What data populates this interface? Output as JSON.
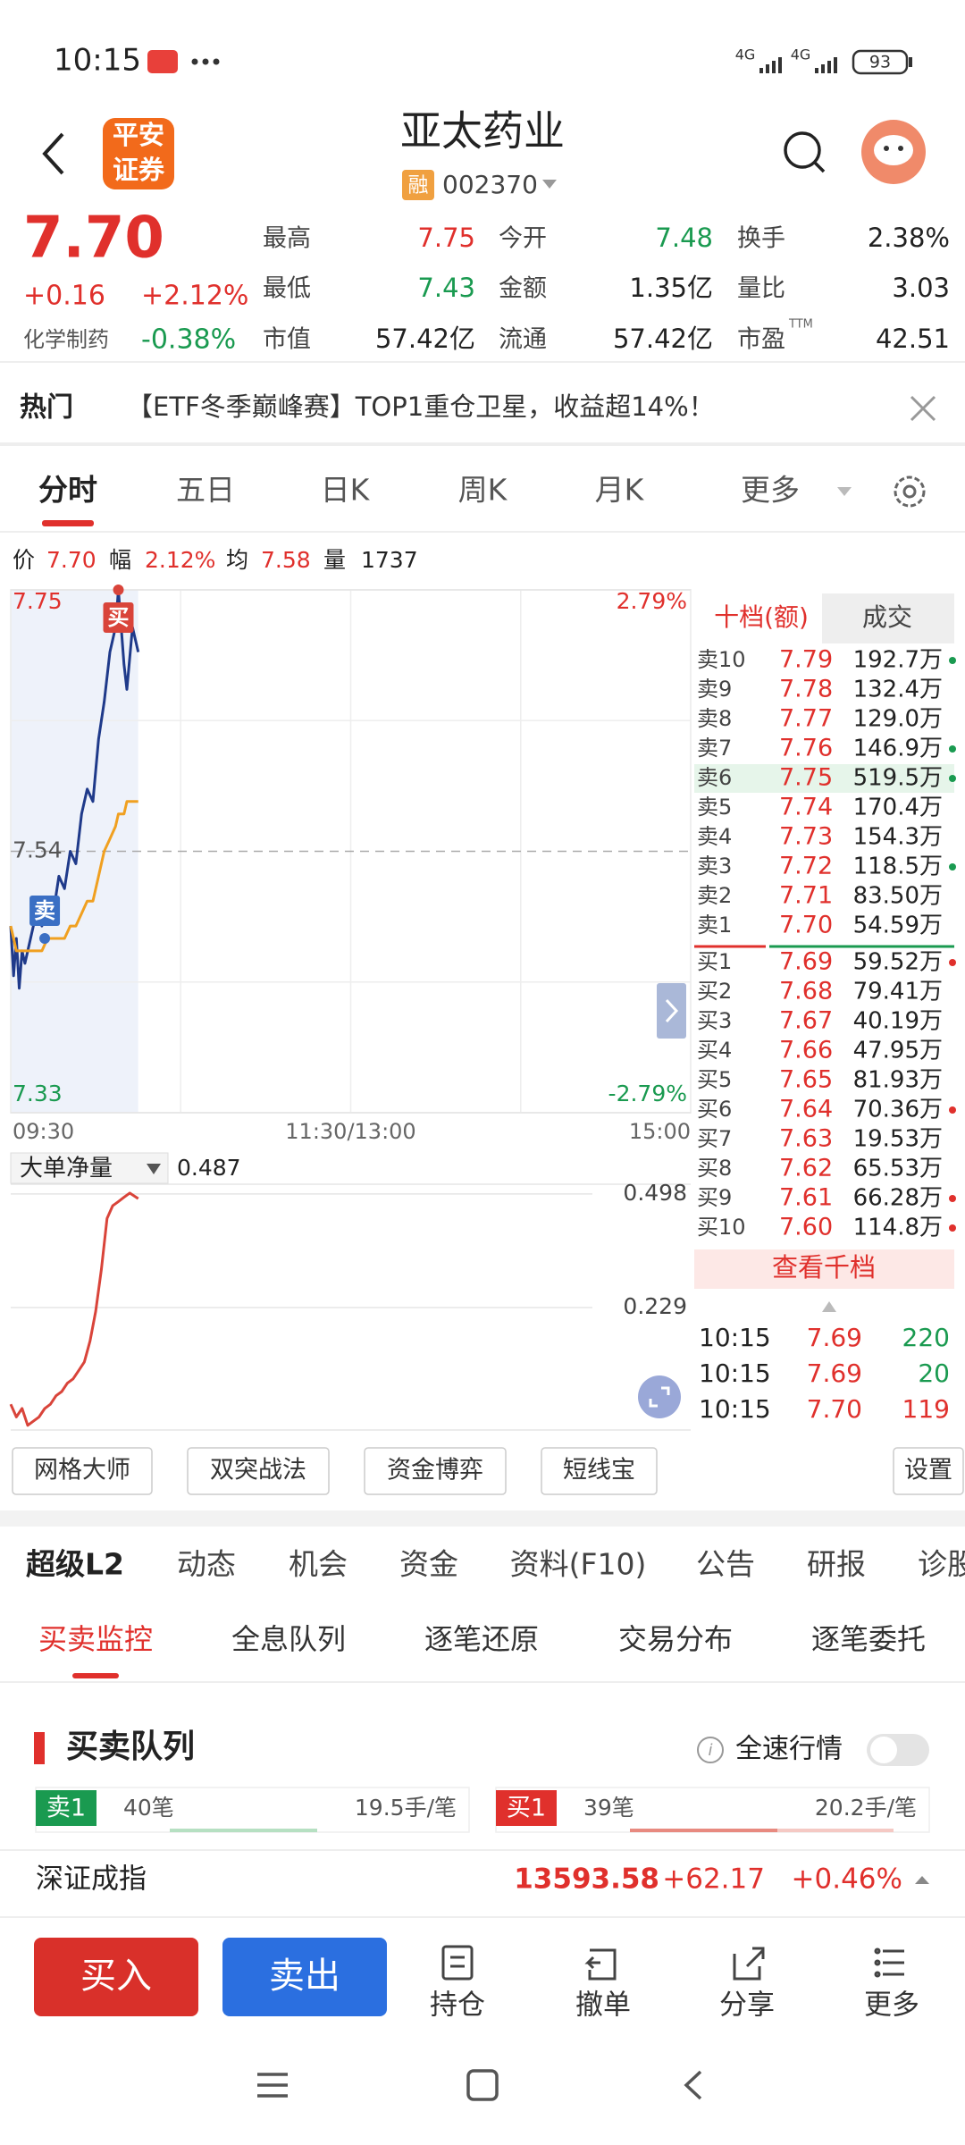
{
  "status_bar": {
    "time": "10:15",
    "network": [
      "4G",
      "4G"
    ],
    "battery": "93"
  },
  "header": {
    "logo_lines": [
      "平安",
      "证券"
    ],
    "title": "亚太药业",
    "tag": "融",
    "code": "002370"
  },
  "quote": {
    "price": "7.70",
    "change": "+0.16",
    "change_pct": "+2.12%",
    "sector": "化学制药",
    "sector_pct": "-0.38%",
    "stats": [
      [
        {
          "label": "最高",
          "value": "7.75",
          "color": "#e0302c"
        },
        {
          "label": "今开",
          "value": "7.48",
          "color": "#1a9a50"
        },
        {
          "label": "换手",
          "value": "2.38%",
          "color": "#222222"
        }
      ],
      [
        {
          "label": "最低",
          "value": "7.43",
          "color": "#1a9a50"
        },
        {
          "label": "金额",
          "value": "1.35亿",
          "color": "#222222"
        },
        {
          "label": "量比",
          "value": "3.03",
          "color": "#222222"
        }
      ],
      [
        {
          "label": "市值",
          "value": "57.42亿",
          "color": "#222222"
        },
        {
          "label": "流通",
          "value": "57.42亿",
          "color": "#222222"
        },
        {
          "label": "市盈",
          "label_sup": "TTM",
          "value": "42.51",
          "color": "#222222"
        }
      ]
    ]
  },
  "banner": {
    "tag": "热门",
    "text": "【ETF冬季巅峰赛】TOP1重仓卫星，收益超14%！"
  },
  "tabs": {
    "items": [
      "分时",
      "五日",
      "日K",
      "周K",
      "月K",
      "更多"
    ],
    "active": 0
  },
  "info": {
    "price": "7.70",
    "amp_label": "幅",
    "amp": "2.12%",
    "avg": "7.58",
    "vol_label": "量",
    "vol": "1737"
  },
  "chart_data": [
    {
      "type": "line",
      "grid": true,
      "xlim": [
        0,
        240
      ],
      "xticks": [
        {
          "value": 0,
          "label": "09:30"
        },
        {
          "value": 120,
          "label": "11:30/13:00"
        },
        {
          "value": 240,
          "label": "15:00"
        }
      ],
      "ylim": [
        7.33,
        7.75
      ],
      "yticks": [
        7.33,
        7.54,
        7.75
      ],
      "y2lim": [
        -2.79,
        2.79
      ],
      "y2ticks": [
        {
          "value": -2.79,
          "label": "-2.79%"
        },
        {
          "value": 2.79,
          "label": "2.79%"
        }
      ],
      "x": [
        0,
        1,
        2,
        3,
        4,
        5,
        7,
        9,
        11,
        13,
        15,
        17,
        19,
        21,
        23,
        25,
        27,
        29,
        31,
        33,
        35,
        37,
        38,
        40,
        41,
        43,
        45
      ],
      "series": [
        {
          "name": "价",
          "color": "#1f3a8a",
          "values": [
            7.48,
            7.44,
            7.47,
            7.43,
            7.46,
            7.45,
            7.47,
            7.49,
            7.48,
            7.5,
            7.49,
            7.52,
            7.51,
            7.54,
            7.53,
            7.57,
            7.59,
            7.58,
            7.63,
            7.66,
            7.7,
            7.72,
            7.75,
            7.69,
            7.67,
            7.72,
            7.7
          ]
        },
        {
          "name": "均",
          "color": "#f0a020",
          "values": [
            7.48,
            7.47,
            7.46,
            7.46,
            7.46,
            7.46,
            7.46,
            7.46,
            7.46,
            7.47,
            7.47,
            7.47,
            7.47,
            7.48,
            7.48,
            7.49,
            7.5,
            7.5,
            7.52,
            7.54,
            7.55,
            7.56,
            7.57,
            7.57,
            7.58,
            7.58,
            7.58
          ]
        }
      ],
      "markers": [
        {
          "label": "买",
          "x": 38,
          "y": 7.75,
          "color": "#d9443a"
        },
        {
          "label": "卖",
          "x": 12,
          "y": 7.47,
          "color": "#3a6fc4"
        }
      ]
    },
    {
      "type": "line",
      "xlim": [
        0,
        240
      ],
      "ylim": [
        -0.061,
        0.521
      ],
      "yticks": [
        0.229,
        0.498
      ],
      "current": 0.487,
      "x": [
        0,
        2,
        4,
        6,
        8,
        10,
        12,
        14,
        16,
        18,
        20,
        22,
        24,
        26,
        28,
        30,
        32,
        34,
        36,
        38,
        40,
        42,
        45
      ],
      "series": [
        {
          "name": "大单净量",
          "color": "#d9443a",
          "values": [
            0,
            -0.03,
            -0.01,
            -0.05,
            -0.04,
            -0.03,
            -0.01,
            0,
            0.02,
            0.03,
            0.05,
            0.06,
            0.08,
            0.1,
            0.15,
            0.22,
            0.32,
            0.44,
            0.47,
            0.48,
            0.49,
            0.5,
            0.487
          ]
        }
      ]
    }
  ],
  "order_book": {
    "header": [
      "十档(额)",
      "成交"
    ],
    "price_color": "#e0302c",
    "asks": [
      {
        "label": "卖10",
        "price": "7.79",
        "amount": "192.7万",
        "dot": "#1a9a50"
      },
      {
        "label": "卖9",
        "price": "7.78",
        "amount": "132.4万"
      },
      {
        "label": "卖8",
        "price": "7.77",
        "amount": "129.0万"
      },
      {
        "label": "卖7",
        "price": "7.76",
        "amount": "146.9万",
        "dot": "#1a9a50"
      },
      {
        "label": "卖6",
        "price": "7.75",
        "amount": "519.5万",
        "dot": "#1a9a50",
        "highlight": true
      },
      {
        "label": "卖5",
        "price": "7.74",
        "amount": "170.4万"
      },
      {
        "label": "卖4",
        "price": "7.73",
        "amount": "154.3万"
      },
      {
        "label": "卖3",
        "price": "7.72",
        "amount": "118.5万",
        "dot": "#1a9a50"
      },
      {
        "label": "卖2",
        "price": "7.71",
        "amount": "83.50万"
      },
      {
        "label": "卖1",
        "price": "7.70",
        "amount": "54.59万"
      }
    ],
    "bids": [
      {
        "label": "买1",
        "price": "7.69",
        "amount": "59.52万",
        "dot": "#e0302c"
      },
      {
        "label": "买2",
        "price": "7.68",
        "amount": "79.41万"
      },
      {
        "label": "买3",
        "price": "7.67",
        "amount": "40.19万"
      },
      {
        "label": "买4",
        "price": "7.66",
        "amount": "47.95万"
      },
      {
        "label": "买5",
        "price": "7.65",
        "amount": "81.93万"
      },
      {
        "label": "买6",
        "price": "7.64",
        "amount": "70.36万",
        "dot": "#e0302c"
      },
      {
        "label": "买7",
        "price": "7.63",
        "amount": "19.53万"
      },
      {
        "label": "买8",
        "price": "7.62",
        "amount": "65.53万"
      },
      {
        "label": "买9",
        "price": "7.61",
        "amount": "66.28万",
        "dot": "#e0302c"
      },
      {
        "label": "买10",
        "price": "7.60",
        "amount": "114.8万",
        "dot": "#e0302c"
      }
    ],
    "more": "查看千档",
    "trades": [
      {
        "time": "10:15",
        "price": "7.69",
        "volume": "220",
        "color": "#1a9a50"
      },
      {
        "time": "10:15",
        "price": "7.69",
        "volume": "20",
        "color": "#1a9a50"
      },
      {
        "time": "10:15",
        "price": "7.70",
        "volume": "119",
        "color": "#e0302c"
      }
    ]
  },
  "tools": {
    "items": [
      "网格大师",
      "双突战法",
      "资金博弈",
      "短线宝"
    ],
    "settings": "设置"
  },
  "l2_tabs": {
    "items": [
      "超级L2",
      "动态",
      "机会",
      "资金",
      "资料(F10)",
      "公告",
      "研报",
      "诊股"
    ],
    "active": 0
  },
  "sub_tabs": {
    "items": [
      "买卖监控",
      "全息队列",
      "逐笔还原",
      "交易分布",
      "逐笔委托"
    ],
    "active": 0
  },
  "queue": {
    "title": "买卖队列",
    "toggle_label": "全速行情",
    "sides": [
      {
        "tag": "卖1",
        "count": "40笔",
        "avg": "19.5手/笔",
        "color": "#1a9a50"
      },
      {
        "tag": "买1",
        "count": "39笔",
        "avg": "20.2手/笔",
        "color": "#e0302c"
      }
    ]
  },
  "index_bar": {
    "name": "深证成指",
    "value": "13593.58",
    "change": "+62.17",
    "change_pct": "+0.46%"
  },
  "actions": {
    "buy": "买入",
    "sell": "卖出",
    "items": [
      "持仓",
      "撤单",
      "分享",
      "更多"
    ]
  }
}
